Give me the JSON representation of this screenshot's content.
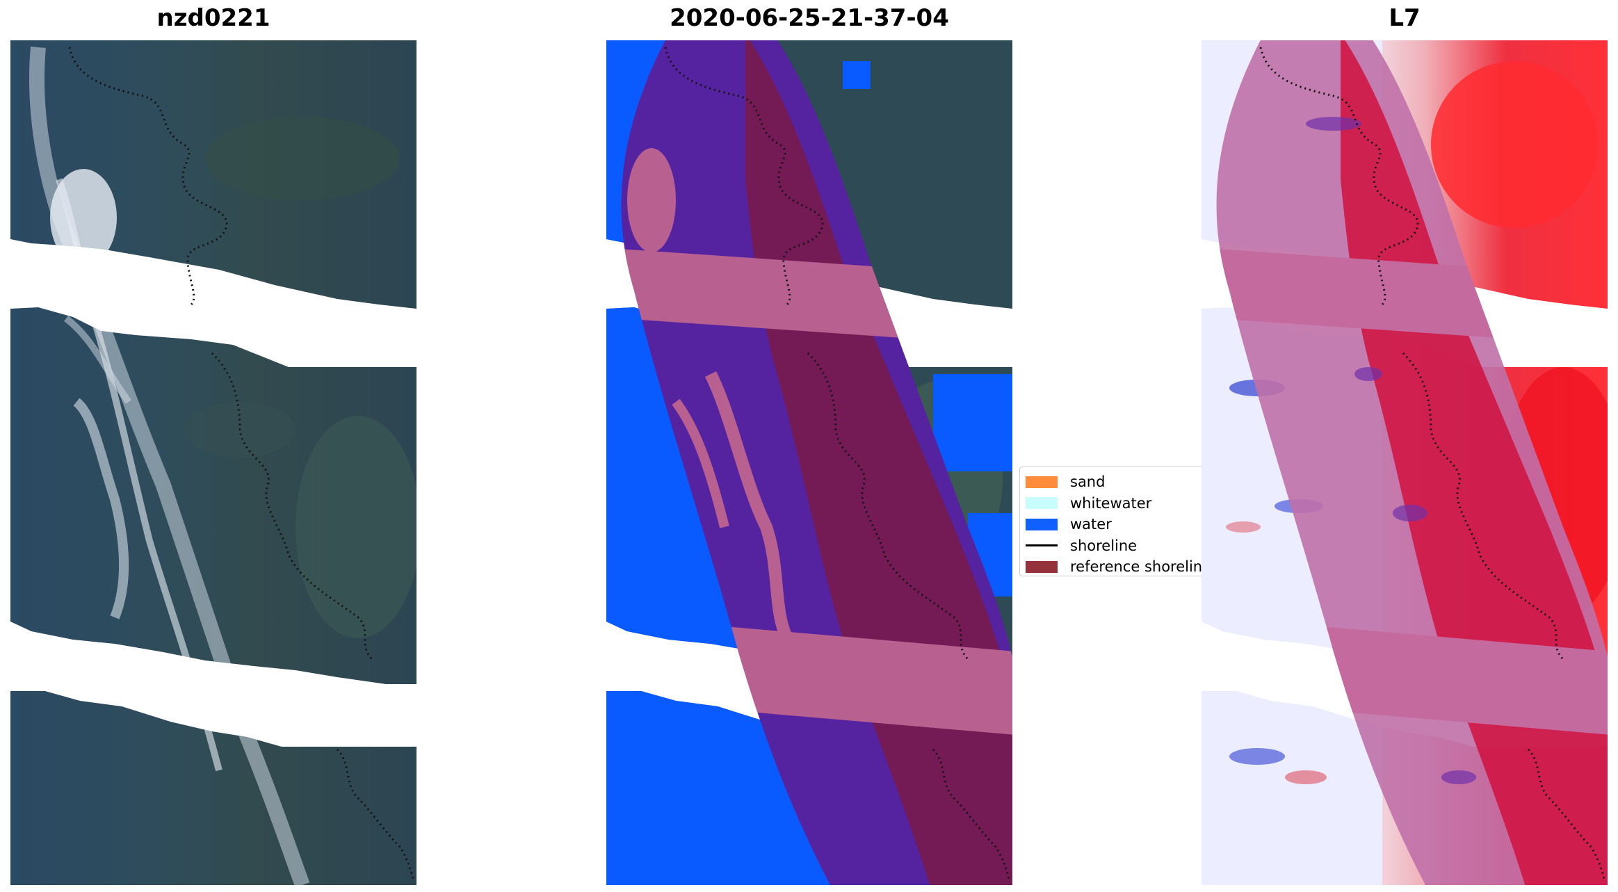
{
  "panels": [
    {
      "title": "nzd0221"
    },
    {
      "title": "2020-06-25-21-37-04"
    },
    {
      "title": "L7"
    }
  ],
  "legend": {
    "placement": "center-right",
    "items": [
      {
        "label": "sand",
        "color": "#ff8c3a",
        "kind": "patch"
      },
      {
        "label": "whitewater",
        "color": "#c8fdfd",
        "kind": "patch"
      },
      {
        "label": "water",
        "color": "#1060ff",
        "kind": "patch"
      },
      {
        "label": "shoreline",
        "color": "#000000",
        "kind": "line"
      },
      {
        "label": "reference shoreline",
        "color": "#94313a",
        "kind": "patch"
      }
    ]
  },
  "colors": {
    "rgb_land": "#2f4a55",
    "rgb_water": "#2a4d63",
    "class_water": "#0a5bff",
    "reference_overlay": "#8c1a3c",
    "buffer_overlay_blue": "#5522a0",
    "buffer_overlay_pink": "#b86090",
    "index_positive": "#e8001c",
    "index_negative": "#2030d0"
  }
}
